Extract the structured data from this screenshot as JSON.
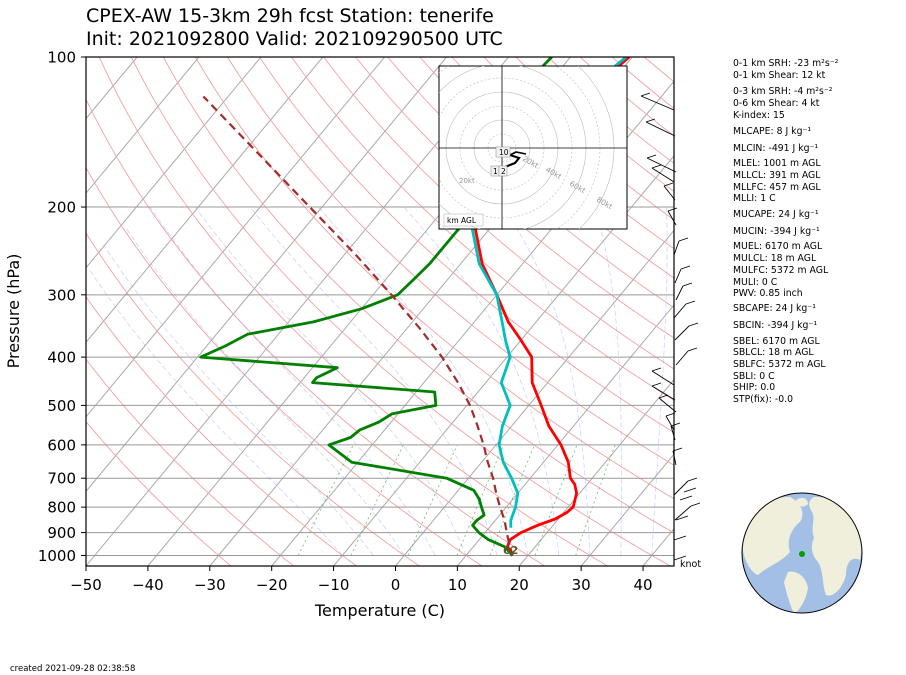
{
  "header": {
    "line1": "CPEX-AW 15-3km  29h fcst  Station: tenerife",
    "line2": "Init: 2021092800  Valid: 202109290500 UTC"
  },
  "chart_data": {
    "type": "line",
    "title": "CPEX-AW 15-3km  29h fcst  Station: tenerife",
    "subtitle": "Init: 2021092800  Valid: 202109290500 UTC",
    "xlabel": "Temperature (C)",
    "ylabel": "Pressure (hPa)",
    "xlim": [
      -50,
      45
    ],
    "ylim": [
      1050,
      100
    ],
    "y_scale": "log",
    "x_ticks": [
      "−50",
      "−40",
      "−30",
      "−20",
      "−10",
      "0",
      "10",
      "20",
      "30",
      "40"
    ],
    "y_ticks": [
      "100",
      "200",
      "300",
      "400",
      "500",
      "600",
      "700",
      "800",
      "900",
      "1000"
    ],
    "grid": true,
    "series": [
      {
        "color": "#ff0000",
        "pressure": [
          1002,
          960,
          930,
          900,
          870,
          845,
          820,
          800,
          780,
          750,
          720,
          700,
          650,
          600,
          550,
          500,
          450,
          400,
          370,
          340,
          300,
          260,
          220,
          200,
          180,
          160,
          140,
          120,
          100
        ],
        "values": [
          17.5,
          15.5,
          15.0,
          15.8,
          17.5,
          19.5,
          20.5,
          20.8,
          20.3,
          19.5,
          18.0,
          16.5,
          14.0,
          10.5,
          6.0,
          2.0,
          -2.5,
          -6.0,
          -10.0,
          -14.5,
          -20.0,
          -26.5,
          -32.5,
          -35.0,
          -35.5,
          -35.5,
          -34.5,
          -32.5,
          -30.5
        ]
      },
      {
        "color": "#00bfbf",
        "pressure": [
          880,
          850,
          800,
          750,
          700,
          650,
          600,
          550,
          500,
          450,
          400,
          370,
          340,
          300,
          260,
          220,
          200,
          180,
          160,
          140,
          120,
          100
        ],
        "values": [
          13.5,
          12.5,
          11.5,
          10.0,
          7.0,
          3.5,
          0.5,
          -1.5,
          -3.0,
          -7.5,
          -9.5,
          -12.5,
          -15.5,
          -20.0,
          -27.0,
          -33.0,
          -35.5,
          -36.5,
          -36.5,
          -35.5,
          -33.5,
          -31.0
        ]
      },
      {
        "color": "#008000",
        "pressure": [
          1000,
          960,
          930,
          900,
          870,
          850,
          830,
          800,
          770,
          740,
          700,
          650,
          600,
          580,
          560,
          540,
          520,
          500,
          470,
          450,
          440,
          420,
          400,
          380,
          360,
          340,
          320,
          300,
          280,
          260,
          240,
          220,
          200,
          180,
          160,
          140,
          120,
          100
        ],
        "values": [
          17.5,
          15.0,
          11.5,
          9.0,
          7.0,
          7.0,
          7.5,
          6.0,
          4.5,
          2.5,
          -3.5,
          -21.0,
          -27.0,
          -24.5,
          -24.0,
          -22.0,
          -21.0,
          -15.0,
          -17.0,
          -38.0,
          -38.0,
          -36.0,
          -59.5,
          -57.0,
          -55.0,
          -46.0,
          -40.0,
          -36.0,
          -35.5,
          -35.0,
          -35.0,
          -35.0,
          -35.0,
          -36.5,
          -41.0,
          -43.0,
          -44.0,
          -43.0
        ]
      },
      {
        "color": "#a52a2a",
        "dashed": true,
        "pressure": [
          1000,
          950,
          900,
          850,
          800,
          750,
          700,
          650,
          600,
          550,
          500,
          450,
          400,
          350,
          300,
          250,
          200,
          150,
          120
        ],
        "values": [
          17.5,
          15.5,
          13.5,
          11.5,
          9.0,
          6.5,
          4.0,
          1.0,
          -2.0,
          -5.5,
          -9.5,
          -14.5,
          -20.5,
          -28.0,
          -37.0,
          -48.0,
          -62.0,
          -80.0,
          -94.0
        ]
      }
    ],
    "station_label": "62",
    "barb_unit": "knot"
  },
  "hodograph": {
    "speed_labels": [
      "20kt",
      "40kt",
      "60kt",
      "80kt"
    ],
    "height_labels": [
      "10",
      "1",
      "2"
    ],
    "footer": "km AGL"
  },
  "indices": [
    "0-1 km SRH: -23 m²s⁻²",
    "0-1 km Shear: 12 kt",
    "0-3 km SRH: -4 m²s⁻²",
    "0-6 km Shear: 4 kt",
    "K-index: 15",
    "MLCAPE: 8 J kg⁻¹",
    "MLCIN: -491 J kg⁻¹",
    "MLEL: 1001 m AGL",
    "MLLCL: 391 m AGL",
    "MLLFC: 457 m AGL",
    "MLLI: 1 C",
    "MUCAPE: 24 J kg⁻¹",
    "MUCIN: -394 J kg⁻¹",
    "MUEL: 6170 m AGL",
    "MULCL: 18 m AGL",
    "MULFC: 5372 m AGL",
    "MULI: 0 C",
    "PWV: 0.85 inch",
    "SBCAPE: 24 J kg⁻¹",
    "SBCIN: -394 J kg⁻¹",
    "SBEL: 6170 m AGL",
    "SBLCL: 18 m AGL",
    "SBLFC: 5372 m AGL",
    "SBLI: 0 C",
    "SHIP: 0.0",
    "STP(fix): -0.0"
  ],
  "footer": {
    "created": "created 2021-09-28 02:38:58"
  }
}
